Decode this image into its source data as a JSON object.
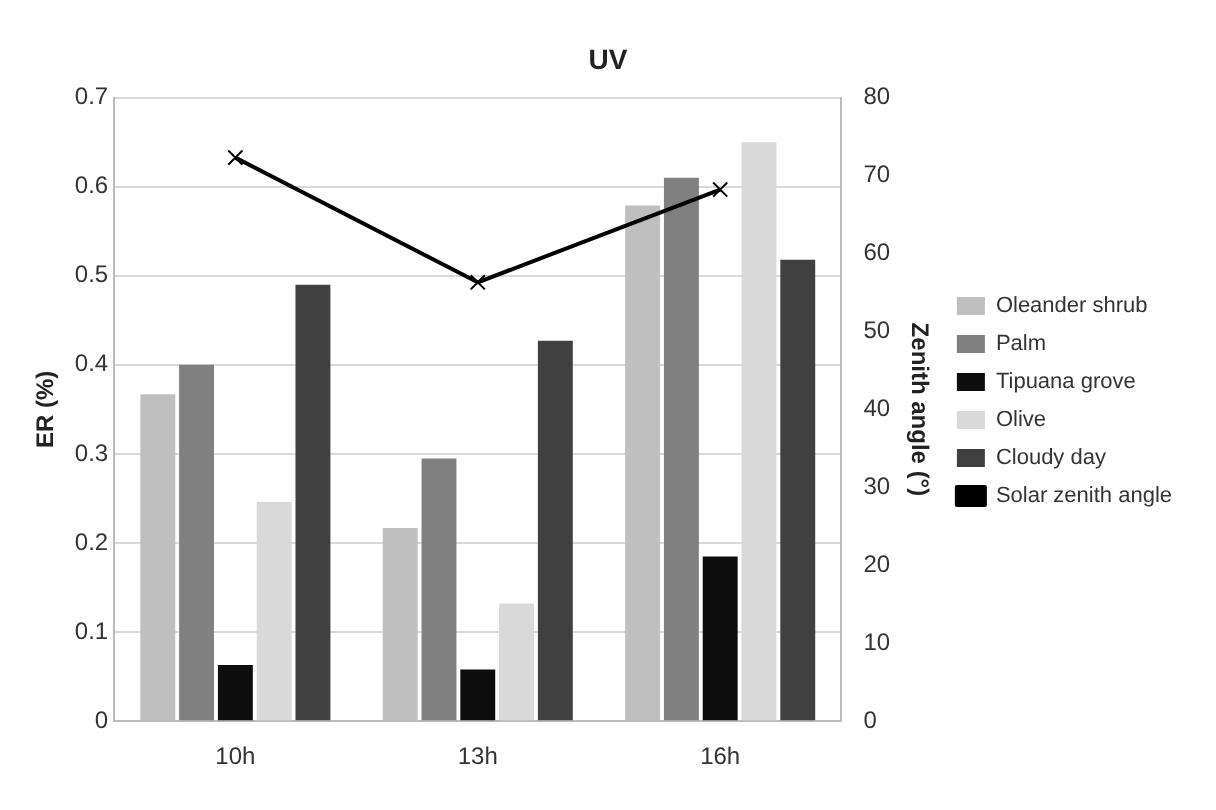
{
  "chart_data": {
    "type": "bar",
    "title": "UV",
    "ylabel": "ER (%)",
    "y2label": "Zenith angle (°)",
    "categories": [
      "10h",
      "13h",
      "16h"
    ],
    "series": [
      {
        "name": "Oleander shrub",
        "color": "#bfbfbf",
        "values": [
          0.367,
          0.217,
          0.579
        ]
      },
      {
        "name": "Palm",
        "color": "#808080",
        "values": [
          0.4,
          0.295,
          0.61
        ]
      },
      {
        "name": "Tipuana grove",
        "color": "#0d0d0d",
        "values": [
          0.063,
          0.058,
          0.185
        ]
      },
      {
        "name": "Olive",
        "color": "#d9d9d9",
        "values": [
          0.246,
          0.132,
          0.65
        ]
      },
      {
        "name": "Cloudy day",
        "color": "#404040",
        "values": [
          0.49,
          0.427,
          0.518
        ]
      },
      {
        "name": "Solar zenith angle",
        "type": "line",
        "axis": "y2",
        "color": "#000000",
        "marker": "cross",
        "values": [
          72.3,
          56.3,
          68.2
        ]
      }
    ],
    "ylim": [
      0,
      0.7
    ],
    "yticks": [
      0,
      0.1,
      0.2,
      0.3,
      0.4,
      0.5,
      0.6,
      0.7
    ],
    "y2lim": [
      0,
      80
    ],
    "y2ticks": [
      0,
      10,
      20,
      30,
      40,
      50,
      60,
      70,
      80
    ],
    "grid": "y",
    "legend": "right"
  }
}
